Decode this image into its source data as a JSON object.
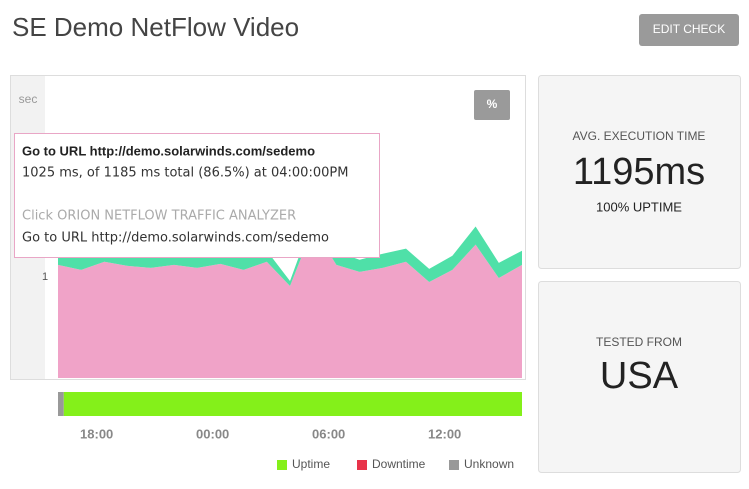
{
  "header": {
    "title": "SE Demo NetFlow Video",
    "button": "EDIT CHECK"
  },
  "chart_data": {
    "type": "area",
    "stacked": true,
    "y_unit": "sec",
    "toggle": "%",
    "x": [
      0,
      1.2,
      2.4,
      3.6,
      4.8,
      6,
      7.2,
      8.4,
      9.6,
      10.8,
      12,
      13.2,
      14.4,
      15.6,
      16.8,
      18,
      19.2,
      20.4,
      21.6,
      22.8,
      24
    ],
    "series": [
      {
        "color": "#f0a3c8",
        "values": [
          1.12,
          1.07,
          1.15,
          1.11,
          1.09,
          1.12,
          1.09,
          1.13,
          1.07,
          1.15,
          0.91,
          1.49,
          1.12,
          1.05,
          1.09,
          1.15,
          0.95,
          1.07,
          1.32,
          0.99,
          1.12
        ]
      },
      {
        "color": "#4fe0a8",
        "values": [
          0.1,
          0.12,
          0.12,
          0.13,
          0.1,
          0.12,
          0.11,
          0.12,
          0.12,
          0.11,
          0.05,
          0.1,
          0.13,
          0.12,
          0.14,
          0.13,
          0.13,
          0.14,
          0.18,
          0.15,
          0.14
        ]
      }
    ],
    "xlim": [
      0,
      24
    ],
    "ylim": [
      0,
      2.9
    ],
    "yticks": [
      1
    ],
    "xticks": [
      {
        "value": 2,
        "label": "18:00"
      },
      {
        "value": 8,
        "label": "00:00"
      },
      {
        "value": 14,
        "label": "06:00"
      },
      {
        "value": 20,
        "label": "12:00"
      }
    ],
    "status_bar": [
      {
        "start": 0,
        "end": 0.3,
        "color": "#999999"
      },
      {
        "start": 0.3,
        "end": 24,
        "color": "#84f01a"
      }
    ],
    "legend": [
      {
        "label": "Uptime",
        "color": "#84f01a"
      },
      {
        "label": "Downtime",
        "color": "#e8334a"
      },
      {
        "label": "Unknown",
        "color": "#999999"
      }
    ],
    "tooltip": {
      "title": "Go to URL http://demo.solarwinds.com/sedemo",
      "detail": "1025 ms, of 1185 ms total (86.5%) at 04:00:00PM",
      "other": "Click ORION NETFLOW TRAFFIC ANALYZER",
      "current": "Go to URL http://demo.solarwinds.com/sedemo"
    }
  },
  "stats": {
    "avg_label": "AVG. EXECUTION TIME",
    "avg_value": "1195ms",
    "uptime": "100% UPTIME",
    "from_label": "TESTED FROM",
    "from_value": "USA"
  }
}
